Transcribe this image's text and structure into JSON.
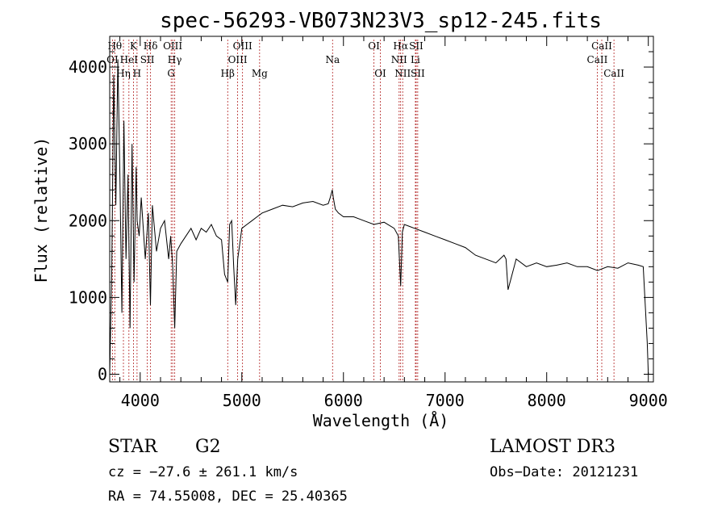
{
  "chart_data": {
    "type": "line",
    "title": "spec-56293-VB073N23V3_sp12-245.fits",
    "xlabel": "Wavelength (Å)",
    "ylabel": "Flux (relative)",
    "xlim": [
      3700,
      9050
    ],
    "ylim": [
      -100,
      4400
    ],
    "xticks": [
      4000,
      5000,
      6000,
      7000,
      8000,
      9000
    ],
    "yticks": [
      0,
      1000,
      2000,
      3000,
      4000
    ],
    "grid": false,
    "series": [
      {
        "name": "flux",
        "x": [
          3700,
          3720,
          3740,
          3760,
          3780,
          3800,
          3820,
          3840,
          3860,
          3880,
          3900,
          3920,
          3940,
          3960,
          3970,
          3990,
          4010,
          4050,
          4080,
          4101,
          4120,
          4160,
          4200,
          4240,
          4280,
          4300,
          4320,
          4340,
          4360,
          4400,
          4450,
          4500,
          4550,
          4600,
          4650,
          4700,
          4750,
          4800,
          4830,
          4861,
          4880,
          4900,
          4920,
          4940,
          4960,
          5000,
          5050,
          5100,
          5150,
          5200,
          5300,
          5400,
          5500,
          5600,
          5700,
          5800,
          5850,
          5870,
          5890,
          5900,
          5920,
          5950,
          6000,
          6100,
          6200,
          6300,
          6400,
          6500,
          6540,
          6563,
          6580,
          6600,
          6700,
          6800,
          6900,
          7000,
          7100,
          7200,
          7300,
          7400,
          7500,
          7580,
          7600,
          7620,
          7700,
          7800,
          7900,
          8000,
          8100,
          8200,
          8300,
          8400,
          8500,
          8600,
          8700,
          8800,
          8900,
          8950,
          8990,
          9000
        ],
        "y": [
          0,
          1300,
          3900,
          2200,
          4100,
          2600,
          800,
          3300,
          1500,
          2600,
          600,
          3000,
          1200,
          2700,
          2000,
          1800,
          2300,
          1500,
          2100,
          900,
          2200,
          1600,
          1900,
          2000,
          1500,
          1800,
          1400,
          600,
          1600,
          1700,
          1800,
          1900,
          1750,
          1900,
          1850,
          1950,
          1800,
          1750,
          1300,
          1200,
          1950,
          2000,
          1400,
          900,
          1500,
          1900,
          1950,
          2000,
          2050,
          2100,
          2150,
          2200,
          2180,
          2230,
          2250,
          2200,
          2220,
          2300,
          2400,
          2300,
          2150,
          2100,
          2050,
          2050,
          2000,
          1950,
          1980,
          1900,
          1800,
          1150,
          1850,
          1950,
          1900,
          1850,
          1800,
          1750,
          1700,
          1650,
          1550,
          1500,
          1450,
          1550,
          1500,
          1100,
          1500,
          1400,
          1450,
          1400,
          1420,
          1450,
          1400,
          1400,
          1350,
          1400,
          1380,
          1450,
          1420,
          1400,
          400,
          0
        ]
      }
    ],
    "lines": [
      {
        "name": "OI",
        "wavelength": 3727,
        "row": 2
      },
      {
        "name": "Hθ",
        "wavelength": 3750,
        "row": 1
      },
      {
        "name": "Hη",
        "wavelength": 3835,
        "row": 3
      },
      {
        "name": "K",
        "wavelength": 3934,
        "row": 1
      },
      {
        "name": "HeI",
        "wavelength": 3889,
        "row": 2
      },
      {
        "name": "H",
        "wavelength": 3969,
        "row": 3
      },
      {
        "name": "SII",
        "wavelength": 4070,
        "row": 2
      },
      {
        "name": "Hδ",
        "wavelength": 4102,
        "row": 1
      },
      {
        "name": "OIII",
        "wavelength": 4320,
        "row": 1
      },
      {
        "name": "Hγ",
        "wavelength": 4340,
        "row": 2
      },
      {
        "name": "G",
        "wavelength": 4305,
        "row": 3
      },
      {
        "name": "Hβ",
        "wavelength": 4861,
        "row": 3
      },
      {
        "name": "OIII",
        "wavelength": 4959,
        "row": 2
      },
      {
        "name": "OIII",
        "wavelength": 5007,
        "row": 1
      },
      {
        "name": "Mg",
        "wavelength": 5175,
        "row": 3
      },
      {
        "name": "Na",
        "wavelength": 5893,
        "row": 2
      },
      {
        "name": "OI",
        "wavelength": 6300,
        "row": 1
      },
      {
        "name": "OI",
        "wavelength": 6363,
        "row": 3
      },
      {
        "name": "Hα",
        "wavelength": 6563,
        "row": 1
      },
      {
        "name": "NII",
        "wavelength": 6548,
        "row": 2
      },
      {
        "name": "NII",
        "wavelength": 6583,
        "row": 3
      },
      {
        "name": "SII",
        "wavelength": 6716,
        "row": 1
      },
      {
        "name": "Li",
        "wavelength": 6708,
        "row": 2
      },
      {
        "name": "SII",
        "wavelength": 6731,
        "row": 3
      },
      {
        "name": "CaII",
        "wavelength": 8498,
        "row": 2
      },
      {
        "name": "CaII",
        "wavelength": 8542,
        "row": 1
      },
      {
        "name": "CaII",
        "wavelength": 8662,
        "row": 3
      }
    ]
  },
  "info": {
    "class": "STAR",
    "subclass": "G2",
    "survey": "LAMOST DR3",
    "cz": "cz = −27.6 ± 261.1 km/s",
    "obs_date": "Obs−Date: 20121231",
    "radec": "RA =  74.55008, DEC =  25.40365"
  },
  "colors": {
    "line_marker": "#b22222",
    "spectrum": "#000000"
  }
}
